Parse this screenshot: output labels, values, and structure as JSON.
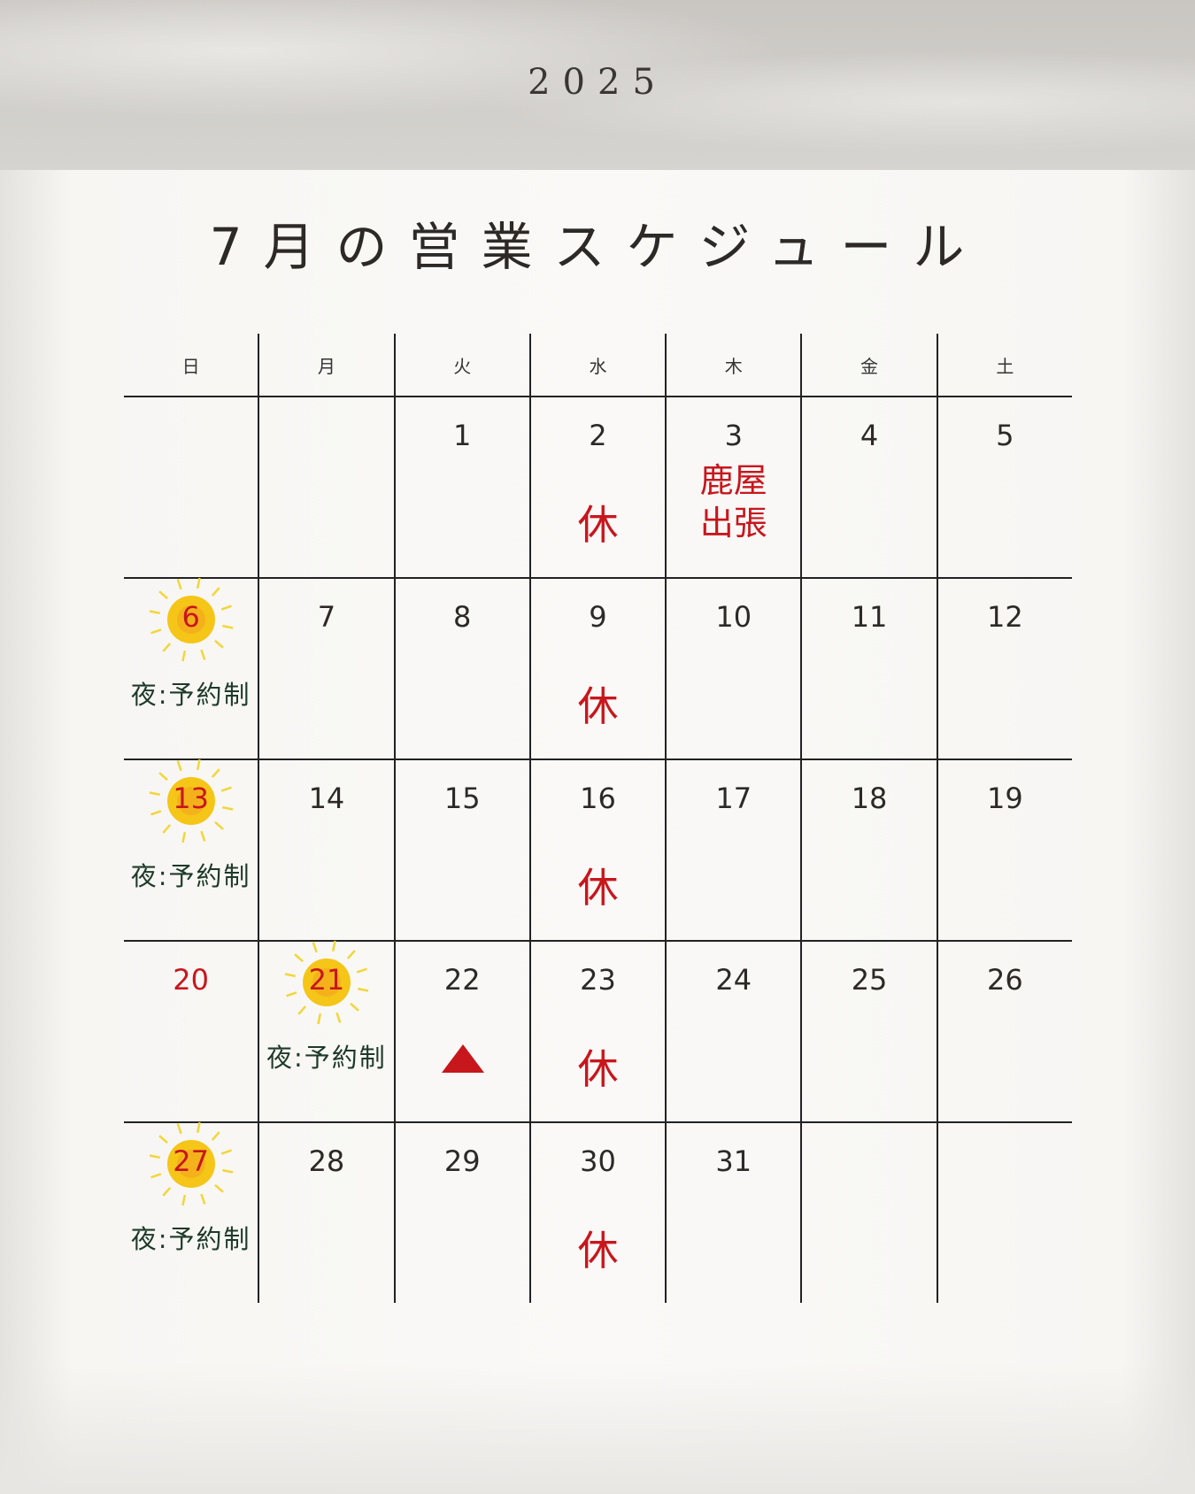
{
  "year": "2025",
  "title": "7月の営業スケジュール",
  "colors": {
    "closed": "#c8161d",
    "night": "#1e3a28",
    "sun": "#f5c518"
  },
  "weekdays": [
    "日",
    "月",
    "火",
    "水",
    "木",
    "金",
    "土"
  ],
  "weeks": [
    [
      {
        "day": ""
      },
      {
        "day": ""
      },
      {
        "day": "1"
      },
      {
        "day": "2",
        "note": "休"
      },
      {
        "day": "3",
        "trip": [
          "鹿屋",
          "出張"
        ]
      },
      {
        "day": "4"
      },
      {
        "day": "5"
      }
    ],
    [
      {
        "day": "6",
        "sun": true,
        "night": "夜:予約制"
      },
      {
        "day": "7"
      },
      {
        "day": "8"
      },
      {
        "day": "9",
        "note": "休"
      },
      {
        "day": "10"
      },
      {
        "day": "11"
      },
      {
        "day": "12"
      }
    ],
    [
      {
        "day": "13",
        "sun": true,
        "night": "夜:予約制"
      },
      {
        "day": "14"
      },
      {
        "day": "15"
      },
      {
        "day": "16",
        "note": "休"
      },
      {
        "day": "17"
      },
      {
        "day": "18"
      },
      {
        "day": "19"
      }
    ],
    [
      {
        "day": "20",
        "red": true
      },
      {
        "day": "21",
        "sun": true,
        "night": "夜:予約制"
      },
      {
        "day": "22",
        "triangle": true
      },
      {
        "day": "23",
        "note": "休"
      },
      {
        "day": "24"
      },
      {
        "day": "25"
      },
      {
        "day": "26"
      }
    ],
    [
      {
        "day": "27",
        "sun": true,
        "night": "夜:予約制"
      },
      {
        "day": "28"
      },
      {
        "day": "29"
      },
      {
        "day": "30",
        "note": "休"
      },
      {
        "day": "31"
      },
      {
        "day": ""
      },
      {
        "day": ""
      }
    ]
  ]
}
